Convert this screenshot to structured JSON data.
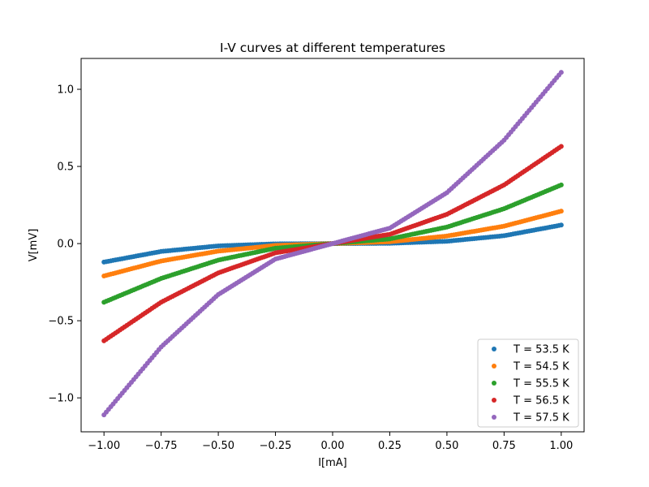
{
  "chart_data": {
    "type": "scatter",
    "title": "I-V curves at different temperatures",
    "xlabel": "I[mA]",
    "ylabel": "V[mV]",
    "xlim": [
      -1.1,
      1.1
    ],
    "ylim": [
      -1.22,
      1.2
    ],
    "x_ticks": [
      -1.0,
      -0.75,
      -0.5,
      -0.25,
      0.0,
      0.25,
      0.5,
      0.75,
      1.0
    ],
    "x_tick_labels": [
      "−1.00",
      "−0.75",
      "−0.50",
      "−0.25",
      "0.00",
      "0.25",
      "0.50",
      "0.75",
      "1.00"
    ],
    "y_ticks": [
      -1.0,
      -0.5,
      0.0,
      0.5,
      1.0
    ],
    "y_tick_labels": [
      "−1.0",
      "−0.5",
      "0.0",
      "0.5",
      "1.0"
    ],
    "grid": false,
    "legend_position": "bottom-right",
    "series": [
      {
        "name": "T = 53.5 K",
        "color": "#1f77b4",
        "x": [
          -1.0,
          -0.75,
          -0.5,
          -0.25,
          0.0,
          0.25,
          0.5,
          0.75,
          1.0
        ],
        "y": [
          -0.12,
          -0.051,
          -0.015,
          -0.0019,
          0.0,
          0.0019,
          0.015,
          0.051,
          0.12
        ]
      },
      {
        "name": "T = 54.5 K",
        "color": "#ff7f0e",
        "x": [
          -1.0,
          -0.75,
          -0.5,
          -0.25,
          0.0,
          0.25,
          0.5,
          0.75,
          1.0
        ],
        "y": [
          -0.21,
          -0.113,
          -0.049,
          -0.012,
          0.0,
          0.012,
          0.049,
          0.113,
          0.21
        ]
      },
      {
        "name": "T = 55.5 K",
        "color": "#2ca02c",
        "x": [
          -1.0,
          -0.75,
          -0.5,
          -0.25,
          0.0,
          0.25,
          0.5,
          0.75,
          1.0
        ],
        "y": [
          -0.38,
          -0.226,
          -0.107,
          -0.03,
          0.0,
          0.03,
          0.107,
          0.226,
          0.38
        ]
      },
      {
        "name": "T = 56.5 K",
        "color": "#d62728",
        "x": [
          -1.0,
          -0.75,
          -0.5,
          -0.25,
          0.0,
          0.25,
          0.5,
          0.75,
          1.0
        ],
        "y": [
          -0.63,
          -0.38,
          -0.19,
          -0.06,
          0.0,
          0.06,
          0.19,
          0.38,
          0.63
        ]
      },
      {
        "name": "T = 57.5 K",
        "color": "#9467bd",
        "x": [
          -1.0,
          -0.75,
          -0.5,
          -0.25,
          0.0,
          0.25,
          0.5,
          0.75,
          1.0
        ],
        "y": [
          -1.11,
          -0.67,
          -0.33,
          -0.1,
          0.0,
          0.1,
          0.33,
          0.67,
          1.11
        ]
      }
    ]
  }
}
